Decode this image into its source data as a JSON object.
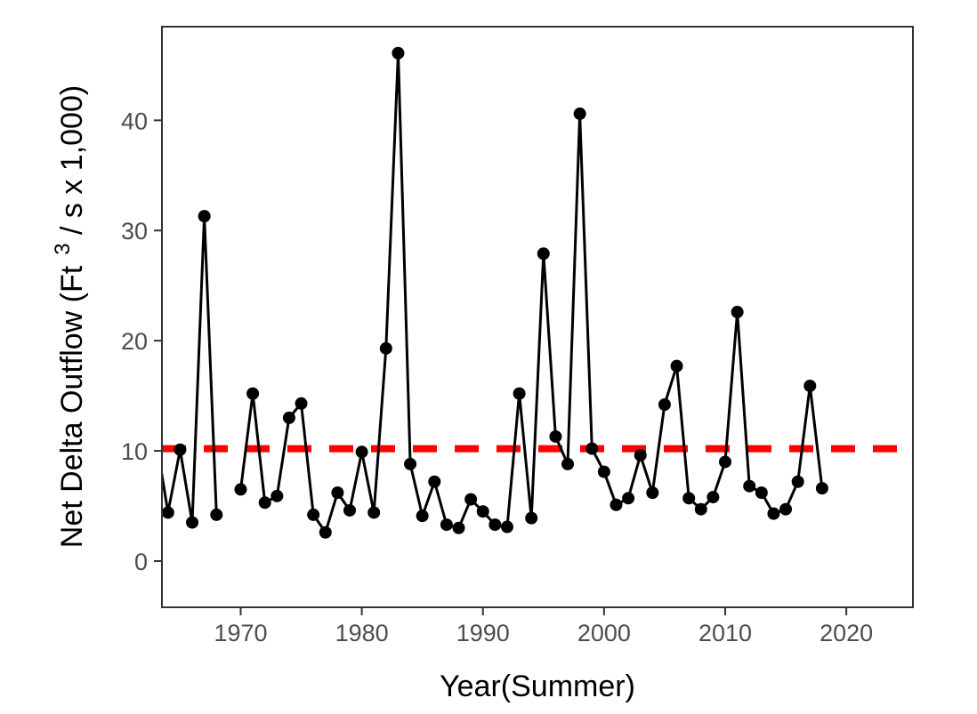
{
  "chart_data": {
    "type": "line",
    "xlabel": "Year(Summer)",
    "ylabel": {
      "prefix": "Net Delta Outflow (Ft",
      "superscript": "3",
      "suffix": " / s x 1,000)"
    },
    "xlim": [
      1963.5,
      2025.5
    ],
    "ylim": [
      -4.2,
      48.5
    ],
    "x_ticks": [
      1970,
      1980,
      1990,
      2000,
      2010,
      2020
    ],
    "y_ticks": [
      0,
      10,
      20,
      30,
      40
    ],
    "grid": false,
    "reference_line": {
      "y": 10.2,
      "color": "#ff0000",
      "style": "dashed"
    },
    "series": [
      {
        "color": "#000000",
        "marker": "circle",
        "segments": [
          {
            "x": [
              1963,
              1964,
              1965,
              1966,
              1967,
              1968
            ],
            "y": [
              11.2,
              4.4,
              10.1,
              3.5,
              31.3,
              4.2
            ]
          },
          {
            "x": [
              1970,
              1971,
              1972,
              1973,
              1974,
              1975,
              1976,
              1977,
              1978,
              1979,
              1980,
              1981,
              1982,
              1983,
              1984,
              1985,
              1986,
              1987,
              1988,
              1989,
              1990,
              1991,
              1992,
              1993,
              1994,
              1995,
              1996,
              1997,
              1998,
              1999,
              2000,
              2001,
              2002,
              2003,
              2004,
              2005,
              2006,
              2007,
              2008,
              2009,
              2010,
              2011,
              2012,
              2013,
              2014,
              2015,
              2016,
              2017,
              2018
            ],
            "y": [
              6.5,
              15.2,
              5.3,
              5.9,
              13.0,
              14.3,
              4.2,
              2.6,
              6.2,
              4.6,
              9.9,
              4.4,
              19.3,
              46.1,
              8.8,
              4.1,
              7.2,
              3.3,
              3.0,
              5.6,
              4.5,
              3.3,
              3.1,
              15.2,
              3.9,
              27.9,
              11.3,
              8.8,
              40.6,
              10.2,
              8.1,
              5.1,
              5.7,
              9.6,
              6.2,
              14.2,
              17.7,
              5.7,
              4.7,
              5.8,
              9.0,
              22.6,
              6.8,
              6.2,
              4.3,
              4.7,
              7.2,
              15.9,
              6.6
            ]
          }
        ]
      }
    ]
  }
}
